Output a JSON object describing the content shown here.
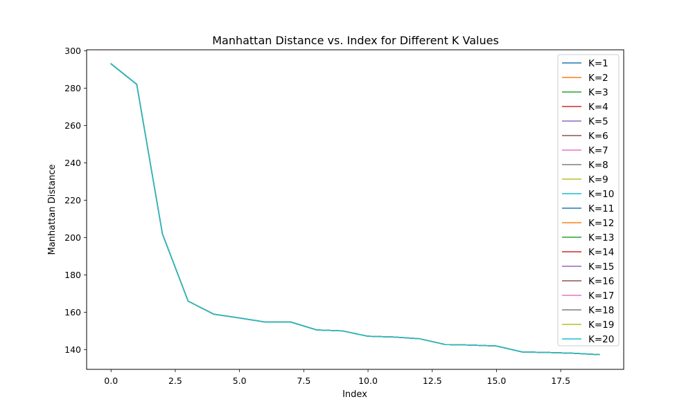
{
  "chart_data": {
    "type": "line",
    "title": "Manhattan Distance vs. Index for Different K Values",
    "xlabel": "Index",
    "ylabel": "Manhattan Distance",
    "xlim": [
      -0.95,
      19.95
    ],
    "ylim": [
      129.5,
      300.5
    ],
    "xticks": [
      0.0,
      2.5,
      5.0,
      7.5,
      10.0,
      12.5,
      15.0,
      17.5
    ],
    "xtick_labels": [
      "0.0",
      "2.5",
      "5.0",
      "7.5",
      "10.0",
      "12.5",
      "15.0",
      "17.5"
    ],
    "yticks": [
      140,
      160,
      180,
      200,
      220,
      240,
      260,
      280,
      300
    ],
    "ytick_labels": [
      "140",
      "160",
      "180",
      "200",
      "220",
      "240",
      "260",
      "280",
      "300"
    ],
    "grid": false,
    "legend_position": "top-right",
    "x": [
      0,
      1,
      2,
      3,
      4,
      5,
      6,
      7,
      8,
      9,
      10,
      11,
      12,
      13,
      14,
      15,
      16,
      17,
      18,
      19
    ],
    "series": [
      {
        "name": "K=1",
        "color": "#1f77b4",
        "values": [
          293,
          282,
          202,
          166,
          159,
          157,
          154.8,
          154.8,
          150.6,
          150.1,
          147.2,
          146.8,
          145.9,
          142.8,
          142.5,
          142.0,
          138.8,
          138.5,
          138.1,
          137.4
        ]
      },
      {
        "name": "K=2",
        "color": "#ff7f0e",
        "values": [
          293,
          282,
          202,
          166,
          159,
          157,
          154.8,
          154.8,
          150.6,
          150.1,
          147.2,
          146.8,
          145.9,
          142.8,
          142.5,
          142.0,
          138.8,
          138.5,
          138.1,
          137.4
        ]
      },
      {
        "name": "K=3",
        "color": "#2ca02c",
        "values": [
          293,
          282,
          202,
          166,
          159,
          157,
          154.8,
          154.8,
          150.6,
          150.1,
          147.2,
          146.8,
          145.9,
          142.8,
          142.5,
          142.0,
          138.8,
          138.5,
          138.1,
          137.4
        ]
      },
      {
        "name": "K=4",
        "color": "#d62728",
        "values": [
          293,
          282,
          202,
          166,
          159,
          157,
          154.8,
          154.8,
          150.6,
          150.1,
          147.2,
          146.8,
          145.9,
          142.8,
          142.5,
          142.0,
          138.8,
          138.5,
          138.1,
          137.4
        ]
      },
      {
        "name": "K=5",
        "color": "#9467bd",
        "values": [
          293,
          282,
          202,
          166,
          159,
          157,
          154.8,
          154.8,
          150.6,
          150.1,
          147.2,
          146.8,
          145.9,
          142.8,
          142.5,
          142.0,
          138.8,
          138.5,
          138.1,
          137.4
        ]
      },
      {
        "name": "K=6",
        "color": "#8c564b",
        "values": [
          293,
          282,
          202,
          166,
          159,
          157,
          154.8,
          154.8,
          150.6,
          150.1,
          147.2,
          146.8,
          145.9,
          142.8,
          142.5,
          142.0,
          138.8,
          138.5,
          138.1,
          137.4
        ]
      },
      {
        "name": "K=7",
        "color": "#e377c2",
        "values": [
          293,
          282,
          202,
          166,
          159,
          157,
          154.8,
          154.8,
          150.6,
          150.1,
          147.2,
          146.8,
          145.9,
          142.8,
          142.5,
          142.0,
          138.8,
          138.5,
          138.1,
          137.4
        ]
      },
      {
        "name": "K=8",
        "color": "#7f7f7f",
        "values": [
          293,
          282,
          202,
          166,
          159,
          157,
          154.8,
          154.8,
          150.6,
          150.1,
          147.2,
          146.8,
          145.9,
          142.8,
          142.5,
          142.0,
          138.8,
          138.5,
          138.1,
          137.4
        ]
      },
      {
        "name": "K=9",
        "color": "#bcbd22",
        "values": [
          293,
          282,
          202,
          166,
          159,
          157,
          154.8,
          154.8,
          150.6,
          150.1,
          147.2,
          146.8,
          145.9,
          142.8,
          142.5,
          142.0,
          138.8,
          138.5,
          138.1,
          137.4
        ]
      },
      {
        "name": "K=10",
        "color": "#17becf",
        "values": [
          293,
          282,
          202,
          166,
          159,
          157,
          154.8,
          154.8,
          150.6,
          150.1,
          147.2,
          146.8,
          145.9,
          142.8,
          142.5,
          142.0,
          138.8,
          138.5,
          138.1,
          137.4
        ]
      },
      {
        "name": "K=11",
        "color": "#1f77b4",
        "values": [
          293,
          282,
          202,
          166,
          159,
          157,
          154.8,
          154.8,
          150.6,
          150.1,
          147.2,
          146.8,
          145.9,
          142.8,
          142.5,
          142.0,
          138.8,
          138.5,
          138.1,
          137.4
        ]
      },
      {
        "name": "K=12",
        "color": "#ff7f0e",
        "values": [
          293,
          282,
          202,
          166,
          159,
          157,
          154.8,
          154.8,
          150.6,
          150.1,
          147.2,
          146.8,
          145.9,
          142.8,
          142.5,
          142.0,
          138.8,
          138.5,
          138.1,
          137.4
        ]
      },
      {
        "name": "K=13",
        "color": "#2ca02c",
        "values": [
          293,
          282,
          202,
          166,
          159,
          157,
          154.8,
          154.8,
          150.6,
          150.1,
          147.2,
          146.8,
          145.9,
          142.8,
          142.5,
          142.0,
          138.8,
          138.5,
          138.1,
          137.4
        ]
      },
      {
        "name": "K=14",
        "color": "#d62728",
        "values": [
          293,
          282,
          202,
          166,
          159,
          157,
          154.8,
          154.8,
          150.6,
          150.1,
          147.2,
          146.8,
          145.9,
          142.8,
          142.5,
          142.0,
          138.8,
          138.5,
          138.1,
          137.4
        ]
      },
      {
        "name": "K=15",
        "color": "#9467bd",
        "values": [
          293,
          282,
          202,
          166,
          159,
          157,
          154.8,
          154.8,
          150.6,
          150.1,
          147.2,
          146.8,
          145.9,
          142.8,
          142.5,
          142.0,
          138.8,
          138.5,
          138.1,
          137.4
        ]
      },
      {
        "name": "K=16",
        "color": "#8c564b",
        "values": [
          293,
          282,
          202,
          166,
          159,
          157,
          154.8,
          154.8,
          150.6,
          150.1,
          147.2,
          146.8,
          145.9,
          142.8,
          142.5,
          142.0,
          138.8,
          138.5,
          138.1,
          137.4
        ]
      },
      {
        "name": "K=17",
        "color": "#e377c2",
        "values": [
          293,
          282,
          202,
          166,
          159,
          157,
          154.8,
          154.8,
          150.6,
          150.1,
          147.2,
          146.8,
          145.9,
          142.8,
          142.5,
          142.0,
          138.8,
          138.5,
          138.1,
          137.4
        ]
      },
      {
        "name": "K=18",
        "color": "#7f7f7f",
        "values": [
          293,
          282,
          202,
          166,
          159,
          157,
          154.8,
          154.8,
          150.6,
          150.1,
          147.2,
          146.8,
          145.9,
          142.8,
          142.5,
          142.0,
          138.8,
          138.5,
          138.1,
          137.4
        ]
      },
      {
        "name": "K=19",
        "color": "#bcbd22",
        "values": [
          293,
          282,
          202,
          166,
          159,
          157,
          154.8,
          154.8,
          150.6,
          150.1,
          147.2,
          146.8,
          145.9,
          142.8,
          142.5,
          142.0,
          138.8,
          138.5,
          138.1,
          137.4
        ]
      },
      {
        "name": "K=20",
        "color": "#17becf",
        "values": [
          293,
          282,
          202,
          166,
          159,
          157,
          154.8,
          154.8,
          150.6,
          150.1,
          147.2,
          146.8,
          145.9,
          142.8,
          142.5,
          142.0,
          138.8,
          138.5,
          138.1,
          137.4
        ]
      }
    ]
  }
}
